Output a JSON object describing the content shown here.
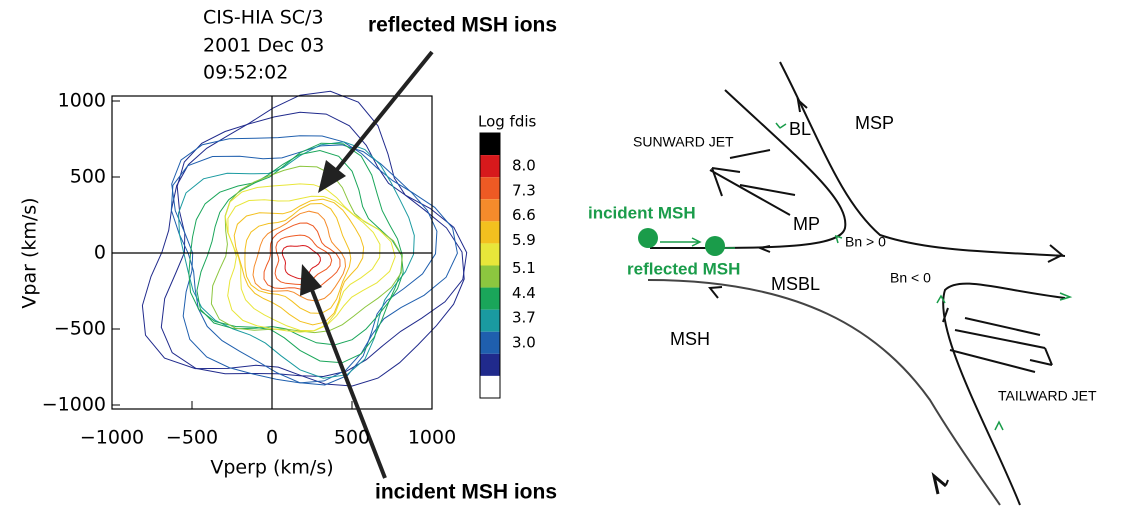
{
  "chart_data": {
    "type": "contour",
    "title": [
      "CIS-HIA  SC/3",
      "2001 Dec 03",
      "09:52:02"
    ],
    "x_label": "Vperp (km/s)",
    "y_label": "Vpar (km/s)",
    "xlim": [
      -1000,
      1000
    ],
    "ylim": [
      -1000,
      1000
    ],
    "xticks": [
      {
        "value": -1000,
        "label": "−1000"
      },
      {
        "value": -500,
        "label": "−500"
      },
      0,
      500,
      1000
    ],
    "yticks": [
      {
        "value": -1000,
        "label": "−1000"
      },
      {
        "value": -500,
        "label": "−500"
      },
      0,
      500,
      1000
    ],
    "colorbar": {
      "title": "Log fdis",
      "colors": [
        "#000000",
        "#d7191c",
        "#ee5a24",
        "#f58b2b",
        "#f3c01f",
        "#e8e63a",
        "#8cc63f",
        "#1aa65a",
        "#1a9aa0",
        "#1f5fae",
        "#202a8c",
        "#ffffff"
      ],
      "ticks": [
        {
          "value": 8.0,
          "label": "8.0"
        },
        {
          "value": 7.3,
          "label": "7.3"
        },
        {
          "value": 6.6,
          "label": "6.6"
        },
        {
          "value": 5.9,
          "label": "5.9"
        },
        {
          "value": 5.1,
          "label": "5.1"
        },
        {
          "value": 4.4,
          "label": "4.4"
        },
        {
          "value": 3.7,
          "label": "3.7"
        },
        {
          "value": 3.0,
          "label": "3.0"
        }
      ]
    }
  },
  "annotations": [
    "reflected MSH ions",
    "incident MSH ions"
  ],
  "diagram": {
    "labels": [
      "MSP",
      "BL",
      "SUNWARD JET",
      "MP",
      "incident MSH",
      "reflected MSH",
      "Bn > 0",
      "Bn < 0",
      "MSBL",
      "MSH",
      "TAILWARD JET"
    ]
  }
}
